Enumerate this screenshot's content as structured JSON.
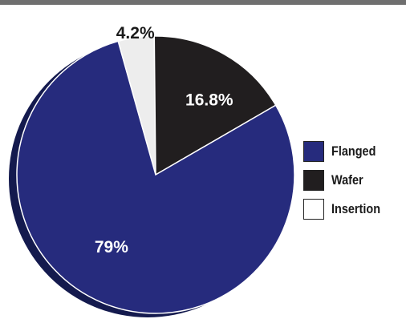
{
  "chart_data": {
    "type": "pie",
    "title": "",
    "slices": [
      {
        "name": "Insertion",
        "value": 4.2,
        "label": "4.2%",
        "color": "#ededed",
        "label_color": "#1a1a1a"
      },
      {
        "name": "Wafer",
        "value": 16.8,
        "label": "16.8%",
        "color": "#211e1f",
        "label_color": "#ffffff"
      },
      {
        "name": "Flanged",
        "value": 79,
        "label": "79%",
        "color": "#262b7d",
        "label_color": "#ffffff"
      }
    ],
    "legend": {
      "placement": "right",
      "items": [
        {
          "name": "Flanged",
          "color": "#262b7d"
        },
        {
          "name": "Wafer",
          "color": "#211e1f"
        },
        {
          "name": "Insertion",
          "color": "#ffffff"
        }
      ]
    },
    "shadow_color": "#141a4e"
  }
}
